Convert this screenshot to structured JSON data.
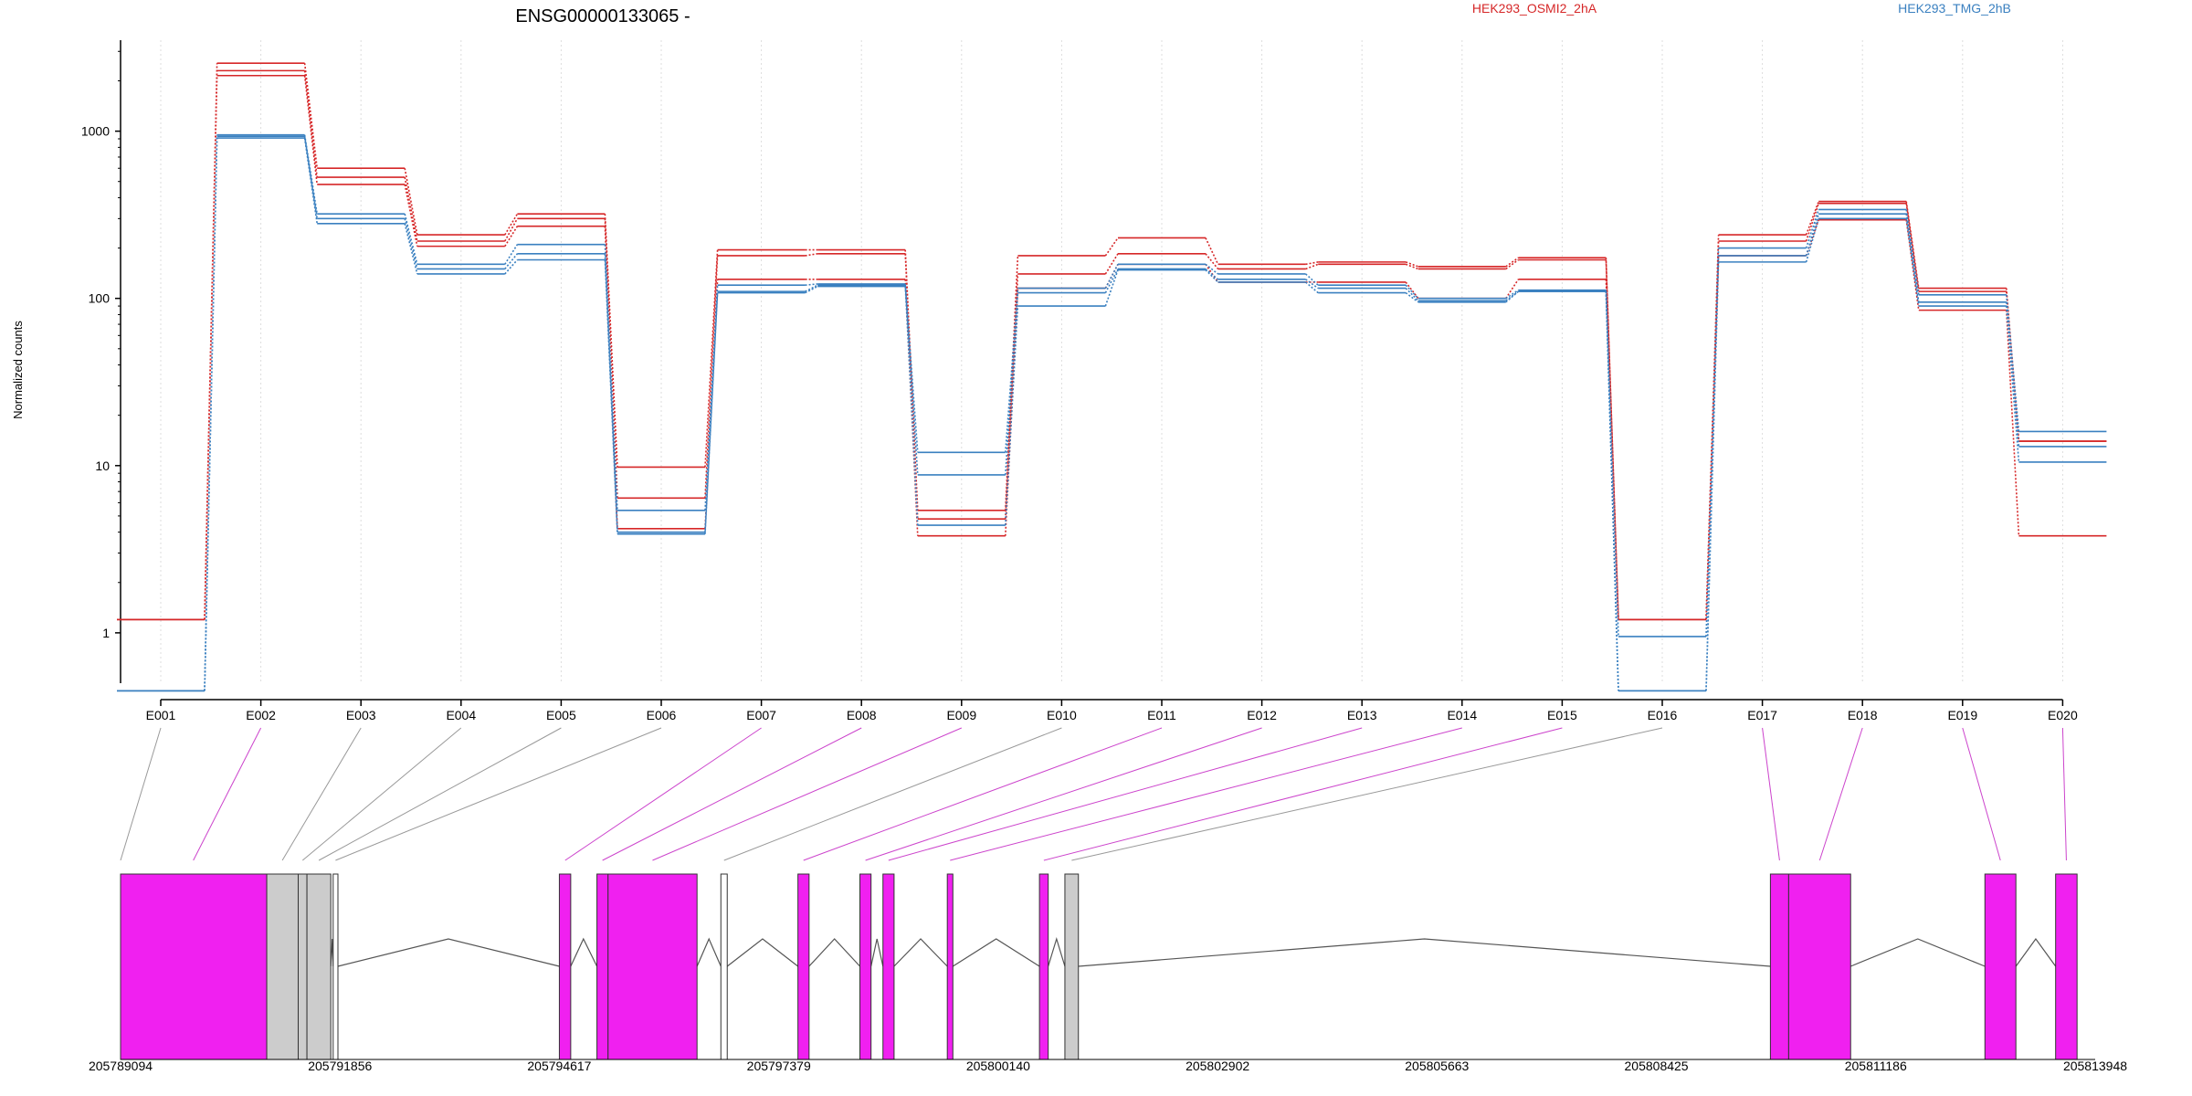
{
  "chart_data": {
    "type": "line",
    "title": "ENSG00000133065 -",
    "ylabel": "Normalized counts",
    "y_scale": "log",
    "ylim": [
      0.5,
      3500
    ],
    "y_ticks": [
      1,
      10,
      100,
      1000
    ],
    "y_tick_labels": [
      "1",
      "10",
      "100",
      "1000"
    ],
    "grid": "vertical dotted lines at each exon",
    "categories": [
      "E001",
      "E002",
      "E003",
      "E004",
      "E005",
      "E006",
      "E007",
      "E008",
      "E009",
      "E010",
      "E011",
      "E012",
      "E013",
      "E014",
      "E015",
      "E016",
      "E017",
      "E018",
      "E019",
      "E020"
    ],
    "legend": [
      {
        "label": "HEK293_OSMI2_2hA",
        "color": "#d62728"
      },
      {
        "label": "HEK293_TMG_2hB",
        "color": "#3a80c0"
      }
    ],
    "series": [
      {
        "color": "#d62728",
        "values": [
          1.2,
          2550,
          600,
          240,
          320,
          9.8,
          195,
          195,
          5.4,
          180,
          230,
          160,
          165,
          155,
          175,
          1.2,
          240,
          380,
          115,
          14
        ]
      },
      {
        "color": "#d62728",
        "values": [
          1.2,
          2300,
          530,
          220,
          300,
          6.4,
          180,
          185,
          4.8,
          140,
          185,
          150,
          160,
          150,
          170,
          1.2,
          220,
          370,
          110,
          14
        ]
      },
      {
        "color": "#d62728",
        "values": [
          1.2,
          2150,
          480,
          205,
          270,
          4.2,
          130,
          130,
          3.8,
          115,
          160,
          125,
          125,
          100,
          130,
          1.2,
          180,
          295,
          85,
          3.8
        ]
      },
      {
        "color": "#3a80c0",
        "values": [
          0.45,
          950,
          320,
          160,
          210,
          5.4,
          120,
          122,
          12,
          115,
          160,
          140,
          120,
          100,
          112,
          0.95,
          200,
          340,
          105,
          16
        ]
      },
      {
        "color": "#3a80c0",
        "values": [
          0.45,
          930,
          300,
          150,
          185,
          4.0,
          110,
          120,
          8.8,
          108,
          150,
          130,
          115,
          97,
          110,
          0.45,
          180,
          320,
          95,
          13
        ]
      },
      {
        "color": "#3a80c0",
        "values": [
          0.45,
          910,
          280,
          140,
          170,
          3.9,
          108,
          118,
          4.4,
          90,
          148,
          125,
          108,
          95,
          110,
          0.45,
          165,
          300,
          90,
          10.5
        ]
      }
    ],
    "genome_axis": {
      "tick_labels": [
        "205789094",
        "205791856",
        "205794617",
        "205797379",
        "205800140",
        "205802902",
        "205805663",
        "205808425",
        "205811186",
        "205813948"
      ]
    },
    "gene_model": {
      "blocks": [
        {
          "start": 205789094,
          "end": 205790934,
          "fill": "#f020f0"
        },
        {
          "start": 205790934,
          "end": 205791330,
          "fill": "#cccccc"
        },
        {
          "start": 205791330,
          "end": 205791440,
          "fill": "#cccccc"
        },
        {
          "start": 205791440,
          "end": 205791740,
          "fill": "#cccccc"
        },
        {
          "start": 205791770,
          "end": 205791830,
          "fill": "#ffffff"
        },
        {
          "start": 205794617,
          "end": 205794760,
          "fill": "#f020f0"
        },
        {
          "start": 205795090,
          "end": 205795230,
          "fill": "#f020f0"
        },
        {
          "start": 205795230,
          "end": 205796350,
          "fill": "#f020f0"
        },
        {
          "start": 205796650,
          "end": 205796730,
          "fill": "#ffffff"
        },
        {
          "start": 205797620,
          "end": 205797760,
          "fill": "#f020f0"
        },
        {
          "start": 205798400,
          "end": 205798540,
          "fill": "#f020f0"
        },
        {
          "start": 205798690,
          "end": 205798830,
          "fill": "#f020f0"
        },
        {
          "start": 205799500,
          "end": 205799570,
          "fill": "#f020f0"
        },
        {
          "start": 205800660,
          "end": 205800770,
          "fill": "#f020f0"
        },
        {
          "start": 205800980,
          "end": 205801150,
          "fill": "#cccccc"
        },
        {
          "start": 205809860,
          "end": 205810090,
          "fill": "#f020f0"
        },
        {
          "start": 205810090,
          "end": 205810870,
          "fill": "#f020f0"
        },
        {
          "start": 205812560,
          "end": 205812950,
          "fill": "#f020f0"
        },
        {
          "start": 205813450,
          "end": 205813720,
          "fill": "#f020f0"
        }
      ],
      "introns": [
        {
          "start": 205791740,
          "mid": 205791760,
          "end": 205791770
        },
        {
          "start": 205791830,
          "mid": 205793220,
          "end": 205794617
        },
        {
          "start": 205794760,
          "mid": 205794920,
          "end": 205795090
        },
        {
          "start": 205796350,
          "mid": 205796500,
          "end": 205796650
        },
        {
          "start": 205796730,
          "mid": 205797175,
          "end": 205797620
        },
        {
          "start": 205797760,
          "mid": 205798080,
          "end": 205798400
        },
        {
          "start": 205798540,
          "mid": 205798615,
          "end": 205798690
        },
        {
          "start": 205798830,
          "mid": 205799165,
          "end": 205799500
        },
        {
          "start": 205799570,
          "mid": 205800115,
          "end": 205800660
        },
        {
          "start": 205800770,
          "mid": 205800875,
          "end": 205800980
        },
        {
          "start": 205801150,
          "mid": 205805505,
          "end": 205809860
        },
        {
          "start": 205810870,
          "mid": 205811715,
          "end": 205812560
        },
        {
          "start": 205812950,
          "mid": 205813200,
          "end": 205813450
        }
      ],
      "connectors": [
        {
          "exon": "E001",
          "to": 205789094,
          "color": "#999999"
        },
        {
          "exon": "E002",
          "to": 205790010,
          "color": "#cc44cc"
        },
        {
          "exon": "E003",
          "to": 205791130,
          "color": "#999999"
        },
        {
          "exon": "E004",
          "to": 205791385,
          "color": "#999999"
        },
        {
          "exon": "E005",
          "to": 205791590,
          "color": "#999999"
        },
        {
          "exon": "E006",
          "to": 205791800,
          "color": "#999999"
        },
        {
          "exon": "E007",
          "to": 205794690,
          "color": "#cc44cc"
        },
        {
          "exon": "E008",
          "to": 205795160,
          "color": "#cc44cc"
        },
        {
          "exon": "E009",
          "to": 205795790,
          "color": "#cc44cc"
        },
        {
          "exon": "E010",
          "to": 205796690,
          "color": "#999999"
        },
        {
          "exon": "E011",
          "to": 205797690,
          "color": "#cc44cc"
        },
        {
          "exon": "E012",
          "to": 205798470,
          "color": "#cc44cc"
        },
        {
          "exon": "E013",
          "to": 205798760,
          "color": "#cc44cc"
        },
        {
          "exon": "E014",
          "to": 205799535,
          "color": "#cc44cc"
        },
        {
          "exon": "E015",
          "to": 205800715,
          "color": "#cc44cc"
        },
        {
          "exon": "E016",
          "to": 205801065,
          "color": "#999999"
        },
        {
          "exon": "E017",
          "to": 205809975,
          "color": "#cc44cc"
        },
        {
          "exon": "E018",
          "to": 205810480,
          "color": "#cc44cc"
        },
        {
          "exon": "E019",
          "to": 205812755,
          "color": "#cc44cc"
        },
        {
          "exon": "E020",
          "to": 205813585,
          "color": "#cc44cc"
        }
      ]
    }
  }
}
